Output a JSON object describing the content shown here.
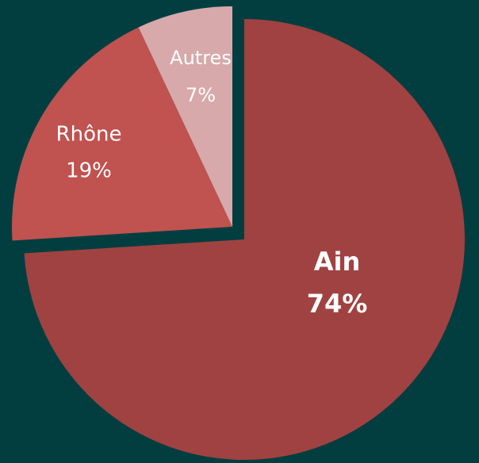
{
  "chart_data": {
    "type": "pie",
    "categories": [
      "Ain",
      "Rhône",
      "Autres"
    ],
    "values": [
      74,
      19,
      7
    ],
    "value_labels": [
      "74%",
      "19%",
      "7%"
    ],
    "colors": [
      "#a04241",
      "#c0524f",
      "#d8a9aa"
    ]
  }
}
